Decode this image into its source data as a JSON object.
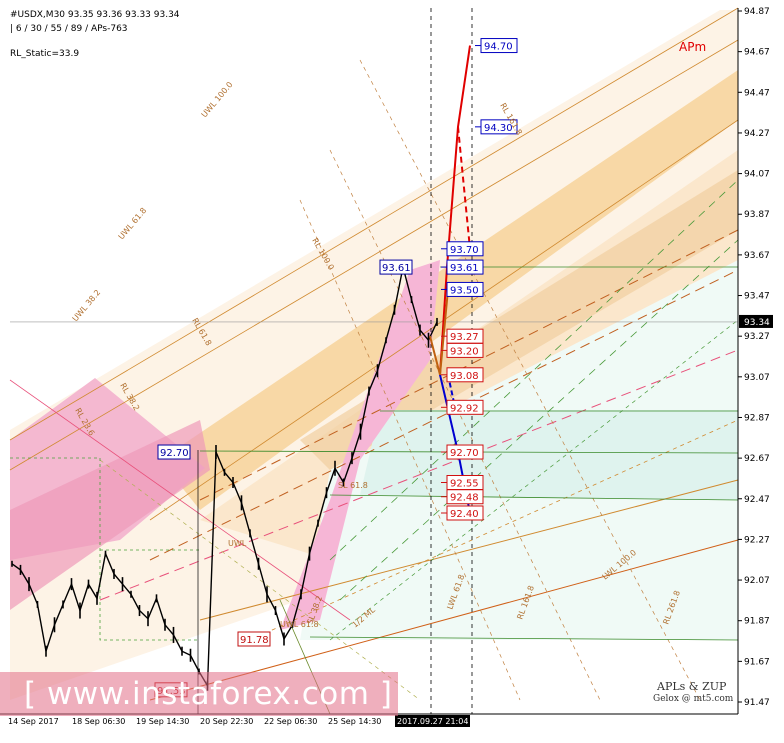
{
  "header": {
    "symbol_line": "#USDX,M30  93.35 93.36 93.33 93.34",
    "params_line": "| 6 / 30 / 55 / 89 / APs-763",
    "rl_static": "RL_Static=33.9"
  },
  "apm_label": "APm",
  "credits": {
    "line1": "APLs & ZUP",
    "line2": "Gelox @ mt5.com"
  },
  "watermark": {
    "text": "[  www.instaforex.com  ]"
  },
  "colors": {
    "up_candle": "#000000",
    "forecast_up": "#e00000",
    "forecast_down": "#0000d0",
    "fork_orange": "#d08a30",
    "fork_pink": "#e8507a",
    "green_level": "#3a8a2a",
    "current_price_line": "#999999"
  },
  "chart_data": {
    "type": "line",
    "title": "",
    "xlabel": "",
    "ylabel": "",
    "ylim": [
      91.4,
      94.9
    ],
    "x_tick_labels": [
      "14 Sep 2017",
      "18 Sep 06:30",
      "19 Sep 14:30",
      "20 Sep 22:30",
      "22 Sep 06:30",
      "25 Sep 14:30",
      "2017.09.27 21:04"
    ],
    "y_ticks": [
      94.87,
      94.67,
      94.47,
      94.27,
      94.07,
      93.87,
      93.67,
      93.47,
      93.27,
      93.07,
      92.87,
      92.67,
      92.47,
      92.27,
      92.07,
      91.87,
      91.67,
      91.47
    ],
    "current_price": 93.34,
    "series": [
      {
        "values": [
          92.15,
          92.12,
          92.05,
          91.95,
          91.72,
          91.85,
          91.95,
          92.05,
          91.92,
          92.05,
          91.98,
          92.2,
          92.1,
          92.05,
          92.0,
          91.92,
          91.88,
          91.98,
          91.85,
          91.8,
          91.72,
          91.7,
          91.62,
          91.55,
          92.7,
          92.6,
          92.55,
          92.45,
          92.3,
          92.15,
          92.0,
          91.92,
          91.78,
          91.85,
          92.0,
          92.2,
          92.35,
          92.5,
          92.62,
          92.55,
          92.67,
          92.8,
          93.0,
          93.1,
          93.25,
          93.4,
          93.61,
          93.45,
          93.3,
          93.25,
          93.34
        ]
      }
    ],
    "forecast_levels": [
      {
        "label": "94.70",
        "value": 94.7
      },
      {
        "label": "94.30",
        "value": 94.3
      },
      {
        "label": "93.70",
        "value": 93.7
      },
      {
        "label": "93.61",
        "value": 93.61
      },
      {
        "label": "93.50",
        "value": 93.5
      },
      {
        "label": "93.27",
        "value": 93.27
      },
      {
        "label": "93.20",
        "value": 93.2
      },
      {
        "label": "93.08",
        "value": 93.08
      },
      {
        "label": "92.92",
        "value": 92.92
      },
      {
        "label": "92.70",
        "value": 92.7
      },
      {
        "label": "92.55",
        "value": 92.55
      },
      {
        "label": "92.48",
        "value": 92.48
      },
      {
        "label": "92.40",
        "value": 92.4
      }
    ],
    "price_labels": [
      {
        "label": "93.61",
        "value": 93.61
      },
      {
        "label": "92.70",
        "value": 92.7
      },
      {
        "label": "91.78",
        "value": 91.78
      },
      {
        "label": "91.53",
        "value": 91.53
      }
    ],
    "line_labels": [
      "UWL 100.0",
      "UWL 61.8",
      "UWL 38.2",
      "RL 100.0",
      "RL 61.8",
      "RL 38.2",
      "RL 23.6",
      "RL 161.8",
      "LWL 100.0",
      "LWL 61.8",
      "RL 261.8",
      "RL 161.8",
      "SL 61.8",
      "UWL 61.8",
      "UWL",
      "1/2 ML",
      "SL 38.2"
    ],
    "grid": false
  }
}
